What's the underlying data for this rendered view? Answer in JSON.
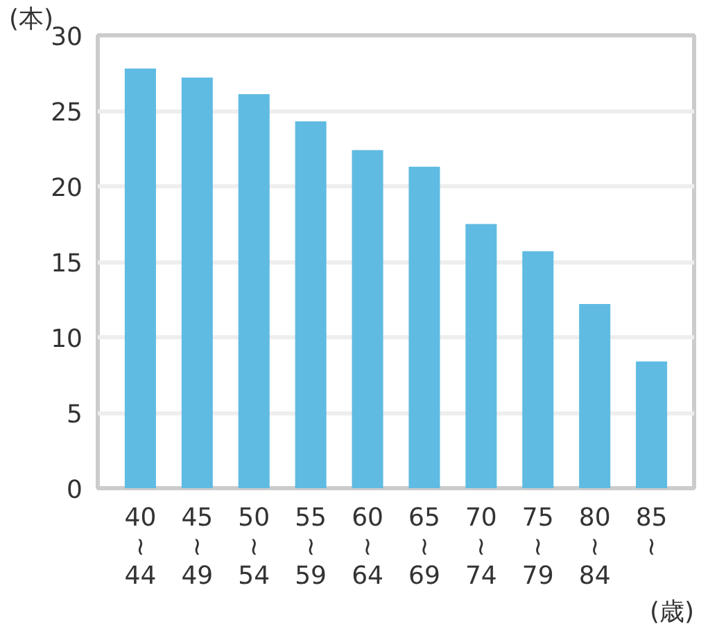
{
  "chart_data": {
    "type": "bar",
    "ylabel": "(本)",
    "xlabel": "(歳)",
    "categories": [
      "40\n≀\n44",
      "45\n≀\n49",
      "50\n≀\n54",
      "55\n≀\n59",
      "60\n≀\n64",
      "65\n≀\n69",
      "70\n≀\n74",
      "75\n≀\n79",
      "80\n≀\n84",
      "85\n≀"
    ],
    "values": [
      27.8,
      27.2,
      26.1,
      24.3,
      22.4,
      21.3,
      17.5,
      15.7,
      12.2,
      8.4
    ],
    "color": "#5fbbe2",
    "ylim": [
      0,
      30
    ],
    "yticks": [
      0,
      5,
      10,
      15,
      20,
      25,
      30
    ],
    "grid": "y"
  }
}
